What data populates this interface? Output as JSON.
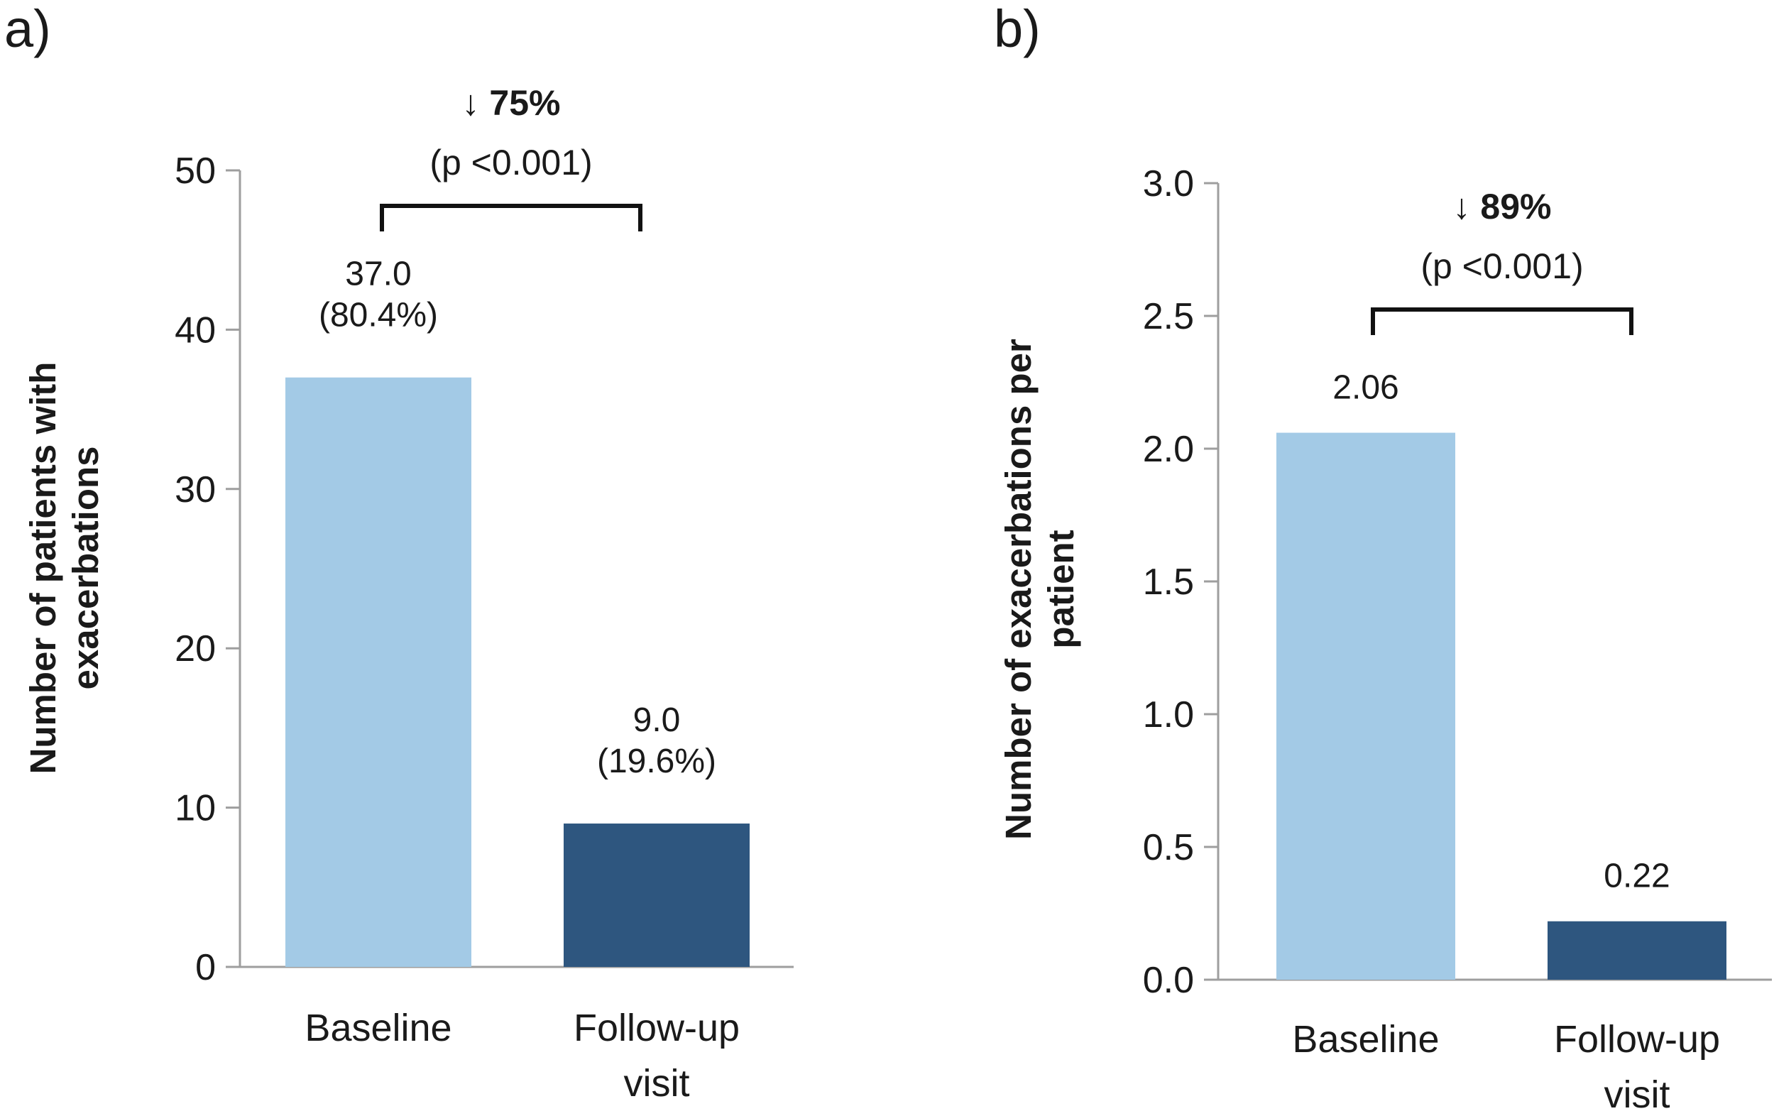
{
  "chart_data": [
    {
      "type": "bar",
      "panel_label": "a)",
      "categories": [
        "Baseline",
        "Follow-up visit"
      ],
      "category_lines": [
        [
          "Baseline"
        ],
        [
          "Follow-up",
          "visit"
        ]
      ],
      "values": [
        37.0,
        9.0
      ],
      "data_labels": [
        [
          "37.0",
          "(80.4%)"
        ],
        [
          "9.0",
          "(19.6%)"
        ]
      ],
      "ylabel_lines": [
        "Number of patients with",
        "exacerbations"
      ],
      "ylim": [
        0,
        50
      ],
      "yticks": [
        "0",
        "10",
        "20",
        "30",
        "40",
        "50"
      ],
      "ytick_values": [
        0,
        10,
        20,
        30,
        40,
        50
      ],
      "colors": [
        "#a3cae6",
        "#2e567f"
      ],
      "annotation": {
        "change": "↓ 75%",
        "p_value": "(p <0.001)"
      },
      "grid": false,
      "legend": "none"
    },
    {
      "type": "bar",
      "panel_label": "b)",
      "categories": [
        "Baseline",
        "Follow-up visit"
      ],
      "category_lines": [
        [
          "Baseline"
        ],
        [
          "Follow-up",
          "visit"
        ]
      ],
      "values": [
        2.06,
        0.22
      ],
      "data_labels": [
        [
          "2.06"
        ],
        [
          "0.22"
        ]
      ],
      "ylabel_lines": [
        "Number of exacerbations per",
        "patient"
      ],
      "ylim": [
        0,
        3.0
      ],
      "yticks": [
        "0.0",
        "0.5",
        "1.0",
        "1.5",
        "2.0",
        "2.5",
        "3.0"
      ],
      "ytick_values": [
        0,
        0.5,
        1.0,
        1.5,
        2.0,
        2.5,
        3.0
      ],
      "colors": [
        "#a3cae6",
        "#2e567f"
      ],
      "annotation": {
        "change": "↓ 89%",
        "p_value": "(p <0.001)"
      },
      "grid": false,
      "legend": "none"
    }
  ]
}
